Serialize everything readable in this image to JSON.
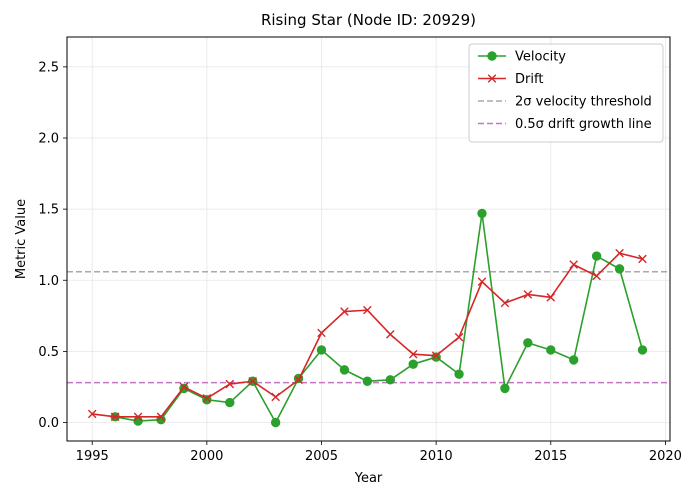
{
  "chart_data": {
    "type": "line",
    "title": "Rising Star (Node ID: 20929)",
    "xlabel": "Year",
    "ylabel": "Metric Value",
    "xlim": [
      1993.9,
      2020.2
    ],
    "ylim": [
      -0.13,
      2.71
    ],
    "xticks": [
      1995,
      2000,
      2005,
      2010,
      2015,
      2020
    ],
    "yticks": [
      0.0,
      0.5,
      1.0,
      1.5,
      2.0,
      2.5
    ],
    "xtick_labels": [
      "1995",
      "2000",
      "2005",
      "2010",
      "2015",
      "2020"
    ],
    "ytick_labels": [
      "0.0",
      "0.5",
      "1.0",
      "1.5",
      "2.0",
      "2.5"
    ],
    "grid": true,
    "legend_position": "top-right",
    "series": [
      {
        "name": "Velocity",
        "color": "#2ca02c",
        "marker": "circle",
        "x": [
          1996,
          1997,
          1998,
          1999,
          2000,
          2001,
          2002,
          2003,
          2004,
          2005,
          2006,
          2007,
          2008,
          2009,
          2010,
          2011,
          2012,
          2013,
          2014,
          2015,
          2016,
          2017,
          2018,
          2019
        ],
        "y": [
          0.04,
          0.01,
          0.02,
          0.24,
          0.16,
          0.14,
          0.29,
          0.0,
          0.31,
          0.51,
          0.37,
          0.29,
          0.3,
          0.41,
          0.46,
          0.34,
          1.47,
          0.24,
          0.56,
          0.51,
          0.44,
          1.17,
          1.08,
          0.51
        ]
      },
      {
        "name": "Drift",
        "color": "#d62728",
        "marker": "x",
        "x": [
          1995,
          1996,
          1997,
          1998,
          1999,
          2000,
          2001,
          2002,
          2003,
          2004,
          2005,
          2006,
          2007,
          2008,
          2009,
          2010,
          2011,
          2012,
          2013,
          2014,
          2015,
          2016,
          2017,
          2018,
          2019
        ],
        "y": [
          0.06,
          0.04,
          0.04,
          0.04,
          0.25,
          0.17,
          0.27,
          0.29,
          0.18,
          0.3,
          0.63,
          0.78,
          0.79,
          0.62,
          0.48,
          0.47,
          0.6,
          0.99,
          0.84,
          0.9,
          0.88,
          1.11,
          1.03,
          1.19,
          1.15
        ]
      }
    ],
    "reference_lines": [
      {
        "name": "2σ velocity threshold",
        "y": 1.06,
        "color": "#aaaaaa",
        "style": "dashed"
      },
      {
        "name": "0.5σ drift growth line",
        "y": 0.28,
        "color": "#c475c4",
        "style": "dashed"
      }
    ]
  }
}
